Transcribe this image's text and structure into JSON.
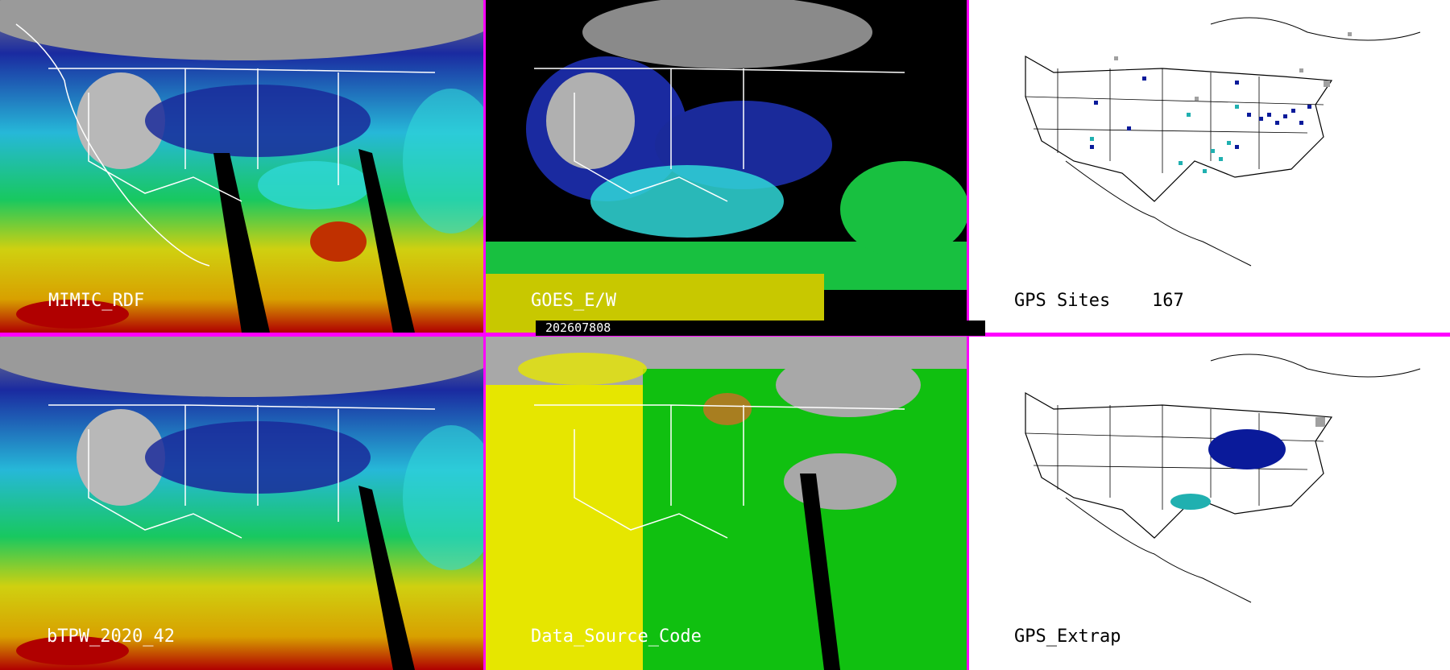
{
  "panels": {
    "mimic": {
      "label": "MIMIC_RDF"
    },
    "goes": {
      "label": "GOES_E/W"
    },
    "gps_sites": {
      "label": "GPS Sites",
      "count": "167"
    },
    "btpw": {
      "label": "bTPW_2020_42"
    },
    "data_source": {
      "label": "Data_Source_Code"
    },
    "gps_extrap": {
      "label": "GPS_Extrap"
    }
  },
  "timestamp": "202607808",
  "colors": {
    "separator": "#ff00ff",
    "tpw_dry": "#0a1a9a",
    "tpw_mid": "#30e0e0",
    "tpw_green": "#10d010",
    "tpw_yellow": "#d8d800",
    "tpw_wet": "#c00000",
    "data_source_yellow": "#e6e600",
    "data_source_green": "#10c010",
    "data_source_gray": "#a8a8a8"
  }
}
